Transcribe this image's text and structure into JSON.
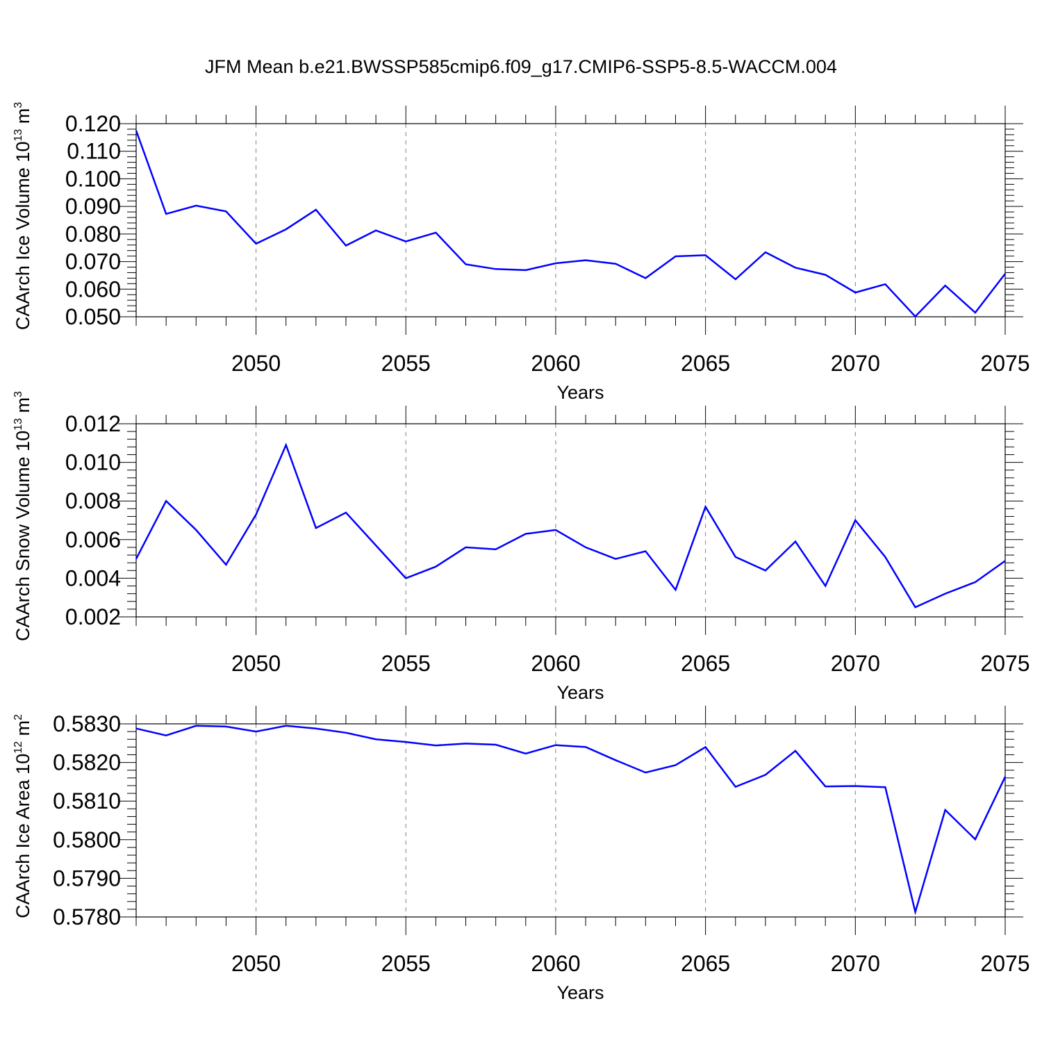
{
  "title": "JFM Mean b.e21.BWSSP585cmip6.f09_g17.CMIP6-SSP5-8.5-WACCM.004",
  "colors": {
    "series": "#0000ff",
    "axis": "#000000",
    "grid": "#808080"
  },
  "chart_data": [
    {
      "type": "line",
      "title": "JFM Mean b.e21.BWSSP585cmip6.f09_g17.CMIP6-SSP5-8.5-WACCM.004",
      "xlabel": "Years",
      "ylabel": {
        "text": "CAArch Ice Volume 10",
        "exponent": "13",
        "unit": " m",
        "unit_exponent": "3"
      },
      "xlim": [
        2046,
        2075
      ],
      "ylim": [
        0.05,
        0.12
      ],
      "xticks": [
        2050,
        2055,
        2060,
        2065,
        2070,
        2075
      ],
      "xtick_labels": [
        "2050",
        "2055",
        "2060",
        "2065",
        "2070",
        "2075"
      ],
      "yticks": [
        0.05,
        0.06,
        0.07,
        0.08,
        0.09,
        0.1,
        0.11,
        0.12
      ],
      "ytick_labels": [
        "0.050",
        "0.060",
        "0.070",
        "0.080",
        "0.090",
        "0.100",
        "0.110",
        "0.120"
      ],
      "grid": "vertical dashed at major x ticks",
      "x": [
        2046,
        2047,
        2048,
        2049,
        2050,
        2051,
        2052,
        2053,
        2054,
        2055,
        2056,
        2057,
        2058,
        2059,
        2060,
        2061,
        2062,
        2063,
        2064,
        2065,
        2066,
        2067,
        2068,
        2069,
        2070,
        2071,
        2072,
        2073,
        2074,
        2075
      ],
      "series": [
        {
          "name": "CAArch Ice Volume",
          "values": [
            0.1175,
            0.0873,
            0.0903,
            0.0882,
            0.0765,
            0.0817,
            0.0888,
            0.0758,
            0.0813,
            0.0773,
            0.0805,
            0.069,
            0.0673,
            0.0669,
            0.0694,
            0.0705,
            0.0692,
            0.064,
            0.0719,
            0.0723,
            0.0636,
            0.0734,
            0.0678,
            0.0652,
            0.0588,
            0.0618,
            0.0501,
            0.0613,
            0.0515,
            0.0656
          ]
        }
      ]
    },
    {
      "type": "line",
      "xlabel": "Years",
      "ylabel": {
        "text": "CAArch Snow Volume 10",
        "exponent": "13",
        "unit": " m",
        "unit_exponent": "3"
      },
      "xlim": [
        2046,
        2075
      ],
      "ylim": [
        0.002,
        0.012
      ],
      "xticks": [
        2050,
        2055,
        2060,
        2065,
        2070,
        2075
      ],
      "xtick_labels": [
        "2050",
        "2055",
        "2060",
        "2065",
        "2070",
        "2075"
      ],
      "yticks": [
        0.002,
        0.004,
        0.006,
        0.008,
        0.01,
        0.012
      ],
      "ytick_labels": [
        "0.002",
        "0.004",
        "0.006",
        "0.008",
        "0.010",
        "0.012"
      ],
      "grid": "vertical dashed at major x ticks",
      "x": [
        2046,
        2047,
        2048,
        2049,
        2050,
        2051,
        2052,
        2053,
        2054,
        2055,
        2056,
        2057,
        2058,
        2059,
        2060,
        2061,
        2062,
        2063,
        2064,
        2065,
        2066,
        2067,
        2068,
        2069,
        2070,
        2071,
        2072,
        2073,
        2074,
        2075
      ],
      "series": [
        {
          "name": "CAArch Snow Volume",
          "values": [
            0.005,
            0.008,
            0.0065,
            0.0047,
            0.0073,
            0.0109,
            0.0066,
            0.0074,
            0.0057,
            0.004,
            0.0046,
            0.0056,
            0.0055,
            0.0063,
            0.0065,
            0.0056,
            0.005,
            0.0054,
            0.0034,
            0.0077,
            0.0051,
            0.0044,
            0.0059,
            0.0036,
            0.007,
            0.0051,
            0.0025,
            0.0032,
            0.0038,
            0.0049
          ]
        }
      ]
    },
    {
      "type": "line",
      "xlabel": "Years",
      "ylabel": {
        "text": "CAArch Ice Area 10",
        "exponent": "12",
        "unit": " m",
        "unit_exponent": "2"
      },
      "xlim": [
        2046,
        2075
      ],
      "ylim": [
        0.578,
        0.583
      ],
      "xticks": [
        2050,
        2055,
        2060,
        2065,
        2070,
        2075
      ],
      "xtick_labels": [
        "2050",
        "2055",
        "2060",
        "2065",
        "2070",
        "2075"
      ],
      "yticks": [
        0.578,
        0.579,
        0.58,
        0.581,
        0.582,
        0.583
      ],
      "ytick_labels": [
        "0.5780",
        "0.5790",
        "0.5800",
        "0.5810",
        "0.5820",
        "0.5830"
      ],
      "grid": "vertical dashed at major x ticks",
      "x": [
        2046,
        2047,
        2048,
        2049,
        2050,
        2051,
        2052,
        2053,
        2054,
        2055,
        2056,
        2057,
        2058,
        2059,
        2060,
        2061,
        2062,
        2063,
        2064,
        2065,
        2066,
        2067,
        2068,
        2069,
        2070,
        2071,
        2072,
        2073,
        2074,
        2075
      ],
      "series": [
        {
          "name": "CAArch Ice Area",
          "values": [
            0.58288,
            0.5827,
            0.58295,
            0.58293,
            0.5828,
            0.58295,
            0.58288,
            0.58277,
            0.5826,
            0.58253,
            0.58244,
            0.58249,
            0.58246,
            0.58223,
            0.58245,
            0.5824,
            0.58206,
            0.58174,
            0.58193,
            0.5824,
            0.58137,
            0.58168,
            0.5823,
            0.58138,
            0.58139,
            0.58136,
            0.57813,
            0.58077,
            0.58001,
            0.58163
          ]
        }
      ]
    }
  ]
}
